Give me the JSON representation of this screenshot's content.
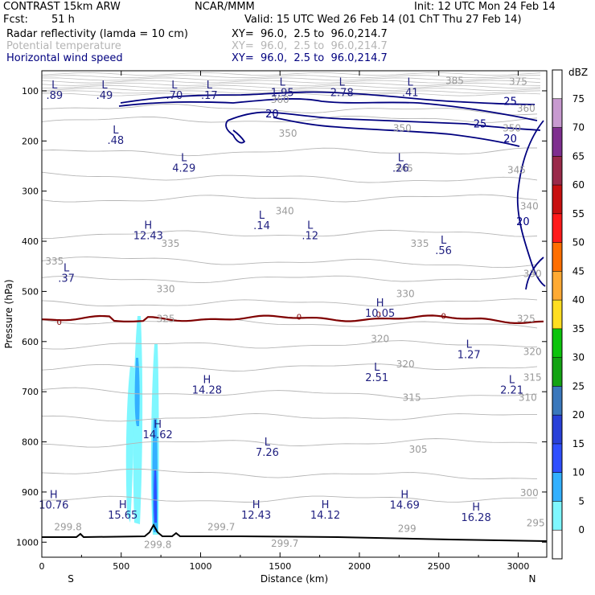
{
  "header": {
    "model": "CONTRAST 15km ARW",
    "org": "NCAR/MMM",
    "init": "Init: 12 UTC Mon 24 Feb 14",
    "fcst_label": "Fcst:",
    "fcst_value": "51 h",
    "valid": "Valid: 15 UTC Wed 26 Feb 14 (01 ChT Thu 27 Feb 14)",
    "fields": [
      {
        "name": "Radar reflectivity (lamda = 10 cm)",
        "xy": "XY=  96.0,  2.5 to  96.0,214.7",
        "color": "#000000"
      },
      {
        "name": "Potential temperature",
        "xy": "XY=  96.0,  2.5 to  96.0,214.7",
        "color": "#b4b4b4"
      },
      {
        "name": "Horizontal wind speed",
        "xy": "XY=  96.0,  2.5 to  96.0,214.7",
        "color": "#00007f"
      }
    ]
  },
  "chart_data": {
    "type": "cross-section",
    "xlabel": "Distance (km)",
    "ylabel": "Pressure (hPa)",
    "xlim": [
      0,
      3180
    ],
    "ylim": [
      1030,
      60
    ],
    "x_ticks": [
      0,
      500,
      1000,
      1500,
      2000,
      2500,
      3000
    ],
    "y_ticks": [
      100,
      200,
      300,
      400,
      500,
      600,
      700,
      800,
      900,
      1000
    ],
    "left_end": "S",
    "right_end": "N",
    "colorbar": {
      "unit": "dBZ",
      "levels": [
        0,
        5,
        10,
        15,
        20,
        25,
        30,
        35,
        40,
        45,
        50,
        55,
        60,
        65,
        70,
        75
      ],
      "colors": [
        "#ffffff",
        "#7ff7ff",
        "#33b0ff",
        "#2f4fff",
        "#2840d8",
        "#3a78bc",
        "#13a313",
        "#0cc40c",
        "#ffde21",
        "#ffaa33",
        "#ff6e00",
        "#ff1a1a",
        "#c81010",
        "#9a2a4a",
        "#7f2f8f",
        "#c89ad0",
        "#ffffff"
      ]
    },
    "theta_contours": [
      {
        "label": "385",
        "km": 2600,
        "hpa": 80
      },
      {
        "label": "375",
        "km": 3000,
        "hpa": 82
      },
      {
        "label": "360",
        "km": 1500,
        "hpa": 118
      },
      {
        "label": "360",
        "km": 3050,
        "hpa": 135
      },
      {
        "label": "350",
        "km": 1550,
        "hpa": 185
      },
      {
        "label": "350",
        "km": 2270,
        "hpa": 175
      },
      {
        "label": "350",
        "km": 2960,
        "hpa": 175
      },
      {
        "label": "345",
        "km": 2280,
        "hpa": 255
      },
      {
        "label": "345",
        "km": 2990,
        "hpa": 258
      },
      {
        "label": "340",
        "km": 1530,
        "hpa": 340
      },
      {
        "label": "340",
        "km": 3070,
        "hpa": 330
      },
      {
        "label": "335",
        "km": 80,
        "hpa": 440
      },
      {
        "label": "335",
        "km": 810,
        "hpa": 405
      },
      {
        "label": "335",
        "km": 2380,
        "hpa": 405
      },
      {
        "label": "330",
        "km": 780,
        "hpa": 495
      },
      {
        "label": "330",
        "km": 2290,
        "hpa": 505
      },
      {
        "label": "330",
        "km": 3090,
        "hpa": 465
      },
      {
        "label": "325",
        "km": 780,
        "hpa": 555
      },
      {
        "label": "325",
        "km": 3050,
        "hpa": 555
      },
      {
        "label": "320",
        "km": 2130,
        "hpa": 595
      },
      {
        "label": "320",
        "km": 2290,
        "hpa": 645
      },
      {
        "label": "320",
        "km": 3090,
        "hpa": 620
      },
      {
        "label": "315",
        "km": 2330,
        "hpa": 712
      },
      {
        "label": "315",
        "km": 3090,
        "hpa": 672
      },
      {
        "label": "310",
        "km": 3060,
        "hpa": 712
      },
      {
        "label": "305",
        "km": 2370,
        "hpa": 815
      },
      {
        "label": "300",
        "km": 3070,
        "hpa": 902
      },
      {
        "label": "299.8",
        "km": 165,
        "hpa": 970
      },
      {
        "label": "299.7",
        "km": 1130,
        "hpa": 970
      },
      {
        "label": "299.7",
        "km": 1530,
        "hpa": 1003
      },
      {
        "label": "299",
        "km": 2300,
        "hpa": 973
      },
      {
        "label": "295",
        "km": 3110,
        "hpa": 962
      },
      {
        "label": "299.8",
        "km": 730,
        "hpa": 1005
      }
    ],
    "wind_speed_labels": [
      {
        "label": "25",
        "km": 2950,
        "hpa": 120
      },
      {
        "label": "20",
        "km": 1450,
        "hpa": 145
      },
      {
        "label": "25",
        "km": 2760,
        "hpa": 165
      },
      {
        "label": "20",
        "km": 2950,
        "hpa": 195
      },
      {
        "label": "20",
        "km": 3030,
        "hpa": 360
      }
    ],
    "zero_dbz_labels": [
      {
        "label": "0",
        "km": 110,
        "hpa": 560
      },
      {
        "label": "0",
        "km": 1620,
        "hpa": 550
      },
      {
        "label": "0",
        "km": 2120,
        "hpa": 545
      },
      {
        "label": "0",
        "km": 2530,
        "hpa": 548
      }
    ],
    "highs_lows": [
      {
        "type": "L",
        "value": ".89",
        "km": 80,
        "hpa": 95
      },
      {
        "type": "L",
        "value": ".49",
        "km": 395,
        "hpa": 95
      },
      {
        "type": "L",
        "value": ".70",
        "km": 835,
        "hpa": 95
      },
      {
        "type": "L",
        "value": ".17",
        "km": 1055,
        "hpa": 95
      },
      {
        "type": "L",
        "value": "1.95",
        "km": 1515,
        "hpa": 90
      },
      {
        "type": "L",
        "value": "2.78",
        "km": 1890,
        "hpa": 90
      },
      {
        "type": "L",
        "value": ".41",
        "km": 2320,
        "hpa": 90
      },
      {
        "type": "L",
        "value": ".48",
        "km": 465,
        "hpa": 185
      },
      {
        "type": "L",
        "value": "4.29",
        "km": 895,
        "hpa": 240
      },
      {
        "type": "L",
        "value": ".26",
        "km": 2260,
        "hpa": 240
      },
      {
        "type": "L",
        "value": ".14",
        "km": 1385,
        "hpa": 355
      },
      {
        "type": "L",
        "value": ".12",
        "km": 1690,
        "hpa": 375
      },
      {
        "type": "H",
        "value": "12.43",
        "km": 670,
        "hpa": 375
      },
      {
        "type": "L",
        "value": ".56",
        "km": 2530,
        "hpa": 405
      },
      {
        "type": "L",
        "value": ".37",
        "km": 155,
        "hpa": 460
      },
      {
        "type": "H",
        "value": "10.05",
        "km": 2130,
        "hpa": 530
      },
      {
        "type": "L",
        "value": "1.27",
        "km": 2690,
        "hpa": 612
      },
      {
        "type": "L",
        "value": "2.51",
        "km": 2110,
        "hpa": 658
      },
      {
        "type": "H",
        "value": "14.28",
        "km": 1040,
        "hpa": 683
      },
      {
        "type": "L",
        "value": "2.21",
        "km": 2960,
        "hpa": 683
      },
      {
        "type": "H",
        "value": "14.62",
        "km": 730,
        "hpa": 772
      },
      {
        "type": "L",
        "value": "7.26",
        "km": 1420,
        "hpa": 807
      },
      {
        "type": "H",
        "value": "10.76",
        "km": 75,
        "hpa": 912
      },
      {
        "type": "H",
        "value": "15.65",
        "km": 510,
        "hpa": 932
      },
      {
        "type": "H",
        "value": "12.43",
        "km": 1350,
        "hpa": 932
      },
      {
        "type": "H",
        "value": "14.12",
        "km": 1785,
        "hpa": 932
      },
      {
        "type": "H",
        "value": "14.69",
        "km": 2285,
        "hpa": 912
      },
      {
        "type": "H",
        "value": "16.28",
        "km": 2735,
        "hpa": 937
      }
    ]
  }
}
